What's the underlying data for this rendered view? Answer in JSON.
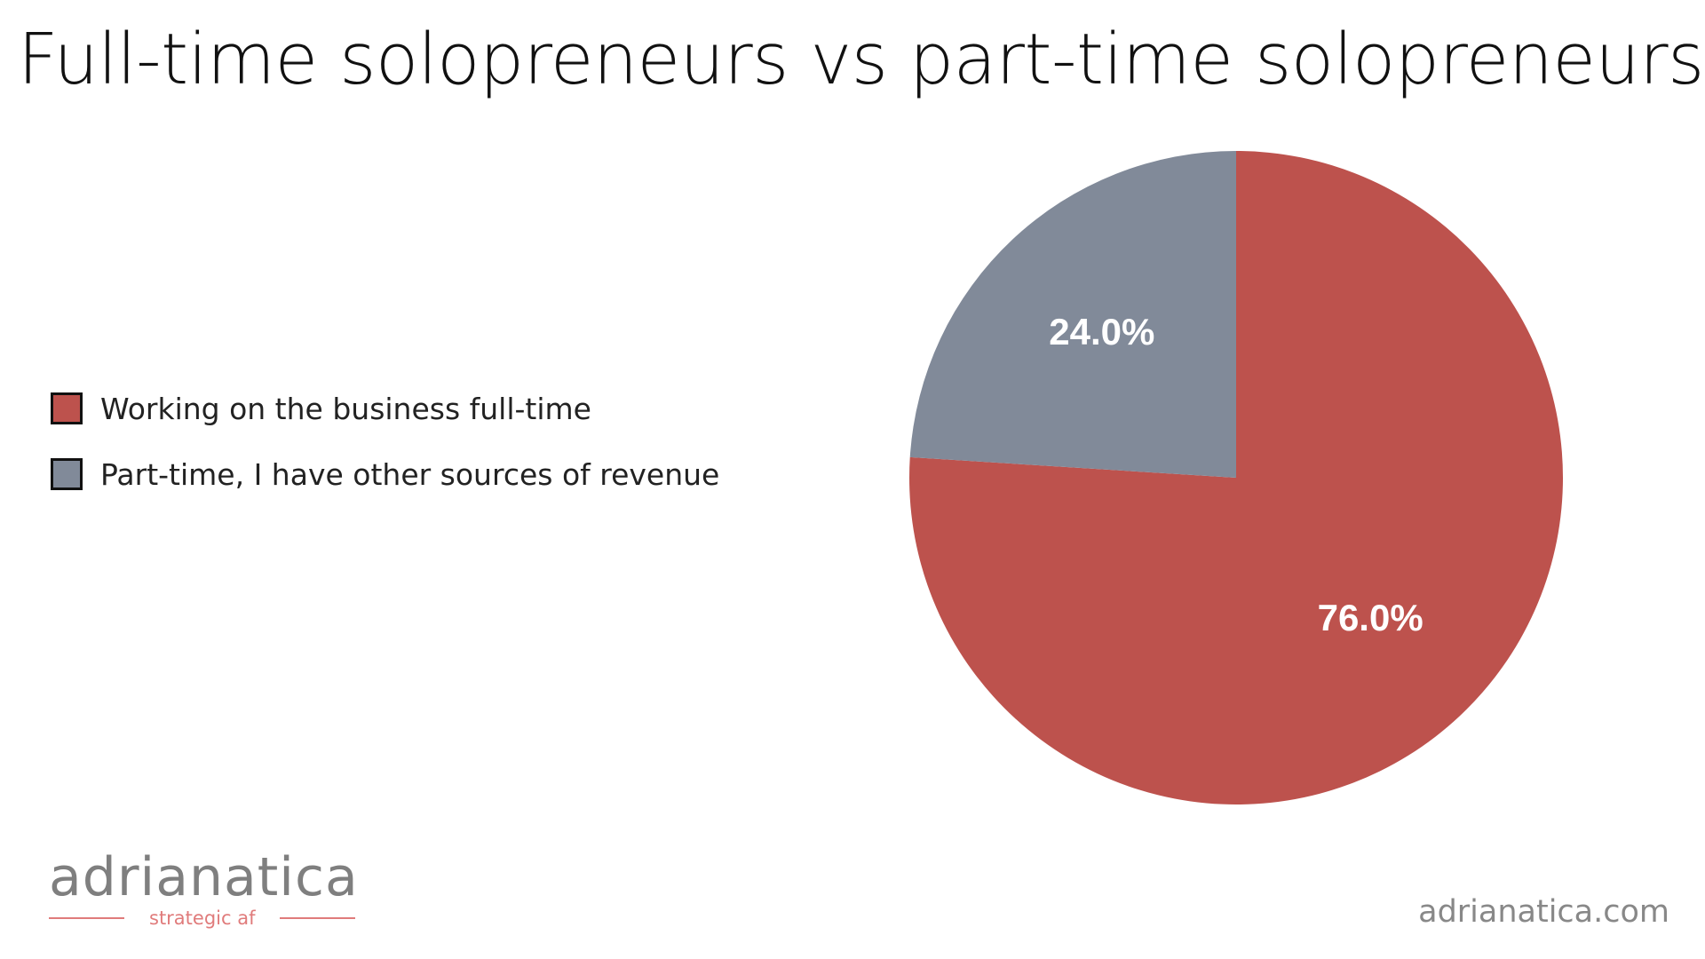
{
  "title": "Full-time solopreneurs vs part-time solopreneurs",
  "legend": {
    "items": [
      {
        "label": "Working on the business full-time",
        "color": "#bd524d"
      },
      {
        "label": "Part-time, I have other sources of revenue",
        "color": "#818a99"
      }
    ]
  },
  "chart_data": {
    "type": "pie",
    "title": "Full-time solopreneurs vs part-time solopreneurs",
    "legend_position": "left",
    "slices": [
      {
        "name": "Working on the business full-time",
        "value": 76.0,
        "label": "76.0%",
        "color": "#bd524d"
      },
      {
        "name": "Part-time, I have other sources of revenue",
        "value": 24.0,
        "label": "24.0%",
        "color": "#818a99"
      }
    ]
  },
  "branding": {
    "logo_text": "adrianatica",
    "tagline": "strategic af",
    "website": "adrianatica.com",
    "colors": {
      "logo": "#7f7f7f",
      "tagline": "#e07b7b",
      "website": "#888888"
    }
  }
}
